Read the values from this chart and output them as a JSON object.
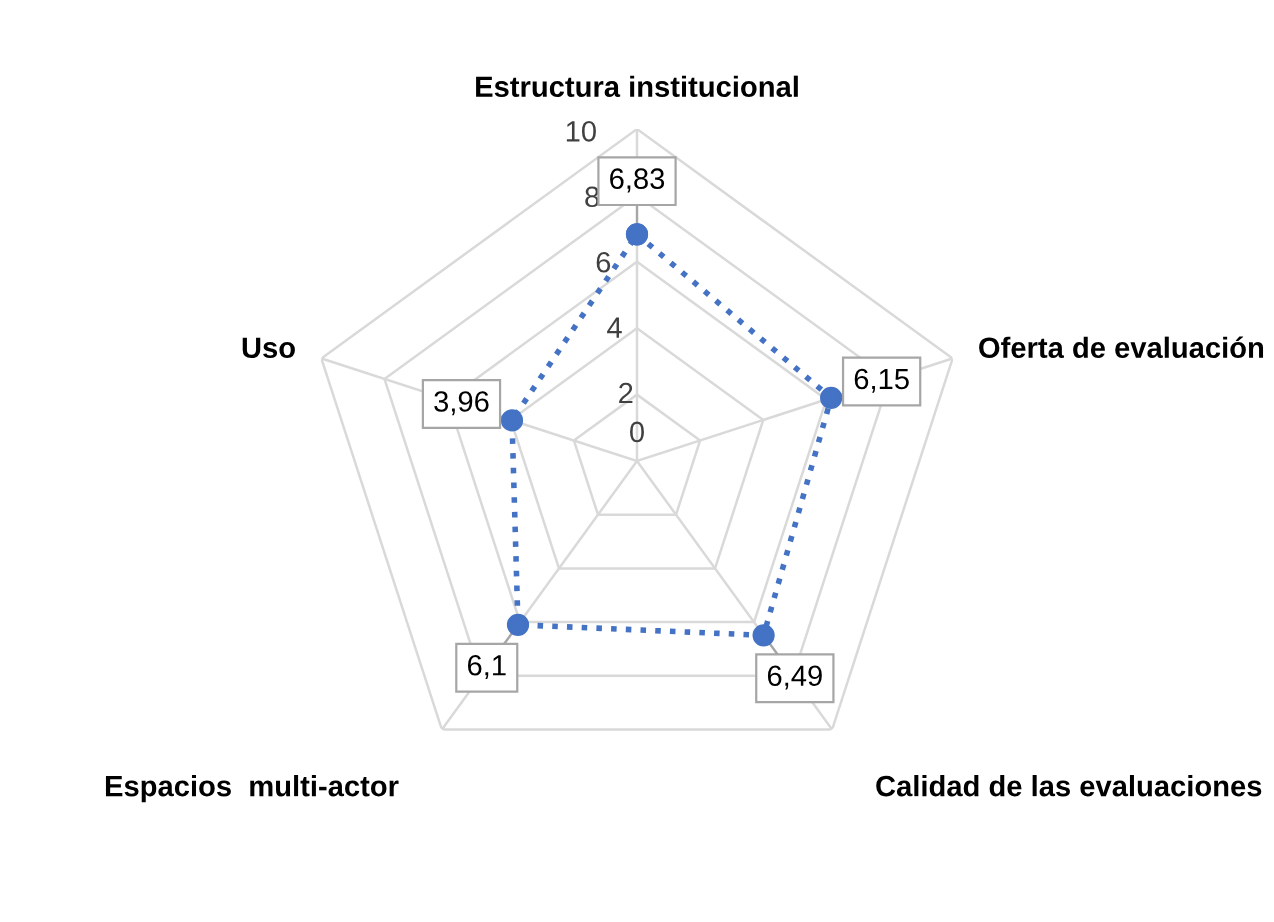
{
  "chart_data": {
    "type": "radar",
    "categories": [
      "Estructura institucional",
      "Oferta de evaluación",
      "Calidad de las evaluaciones",
      "Espacios  multi-actor",
      "Uso"
    ],
    "series": [
      {
        "color": "#4472c4",
        "values": [
          6.83,
          6.15,
          6.49,
          6.1,
          3.96
        ],
        "value_labels": [
          "6,83",
          "6,15",
          "6,49",
          "6,1",
          "3,96"
        ]
      }
    ],
    "ylim": [
      0,
      10
    ],
    "yticks": [
      0,
      2,
      4,
      6,
      8,
      10
    ],
    "grid": true,
    "marker": "circle",
    "line_style": "dotted",
    "legend": false
  }
}
